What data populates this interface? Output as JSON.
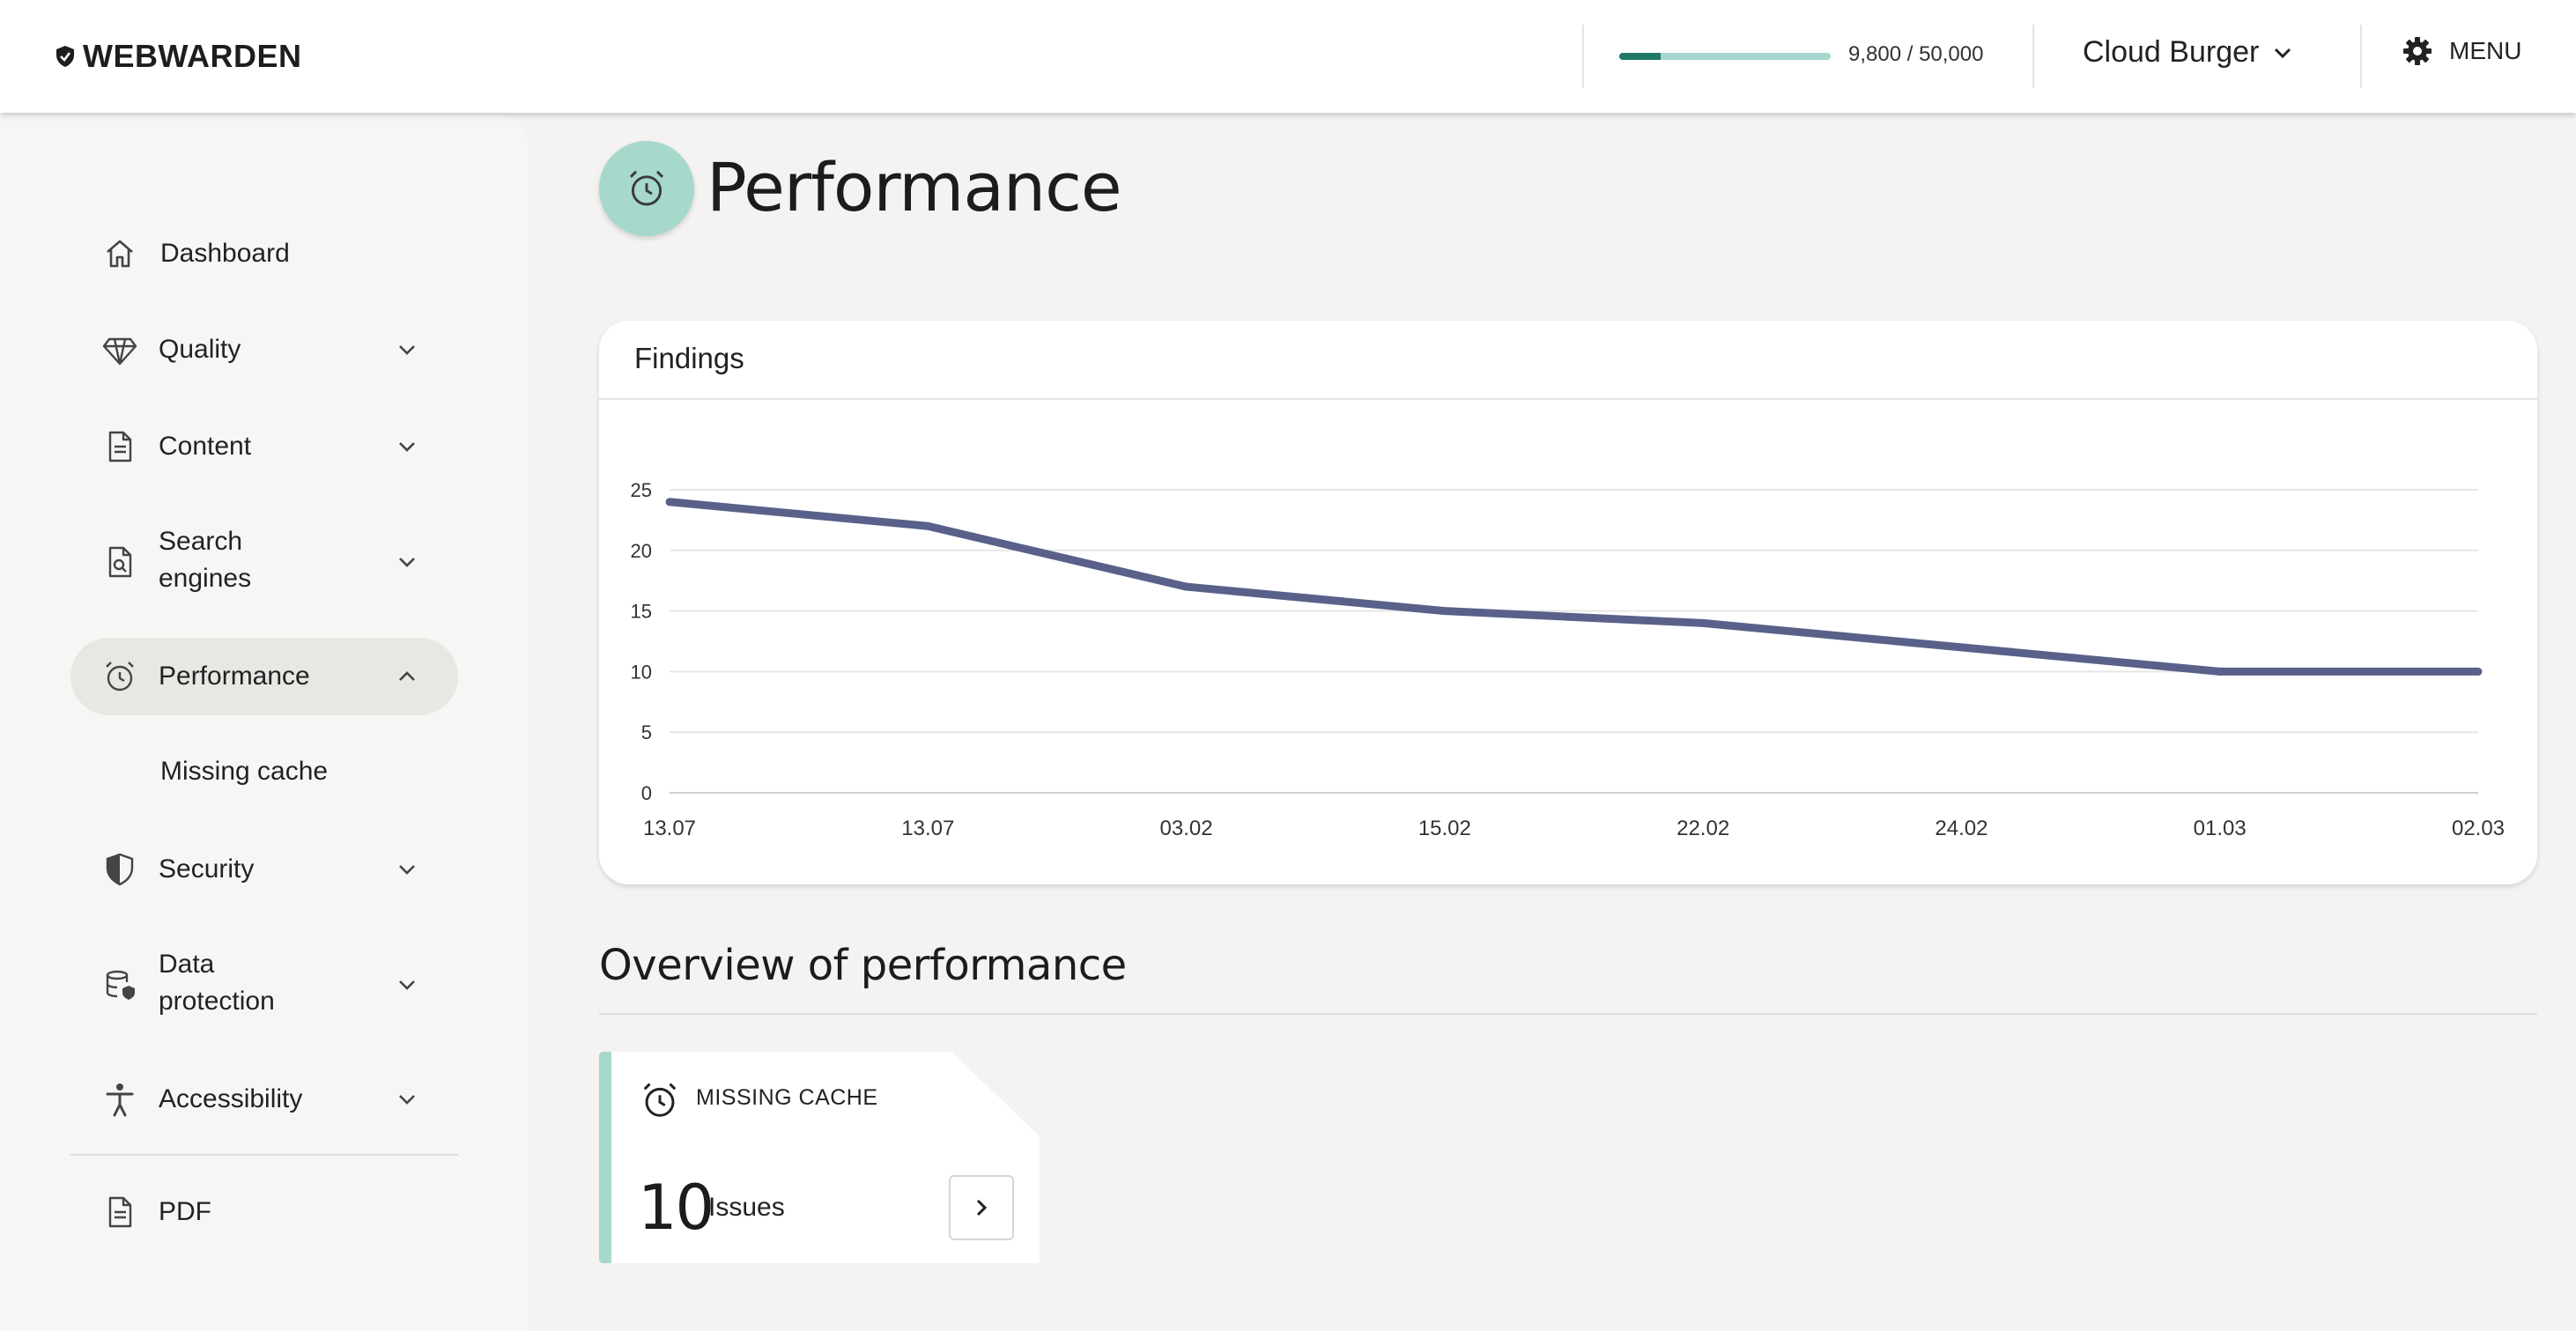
{
  "header": {
    "logo_text": "WEBWARDEN",
    "usage_text": "9,800 / 50,000",
    "usage_fraction": 0.196,
    "project_name": "Cloud Burger",
    "menu_label": "MENU"
  },
  "sidebar": {
    "items": [
      {
        "label": "Dashboard",
        "icon": "home-icon"
      },
      {
        "label": "Quality",
        "icon": "diamond-icon"
      },
      {
        "label": "Content",
        "icon": "document-icon"
      },
      {
        "label": "Search\nengines",
        "icon": "search-document-icon"
      },
      {
        "label": "Performance",
        "icon": "alarm-clock-icon"
      },
      {
        "label": "Security",
        "icon": "shield-icon"
      },
      {
        "label": "Data\nprotection",
        "icon": "database-shield-icon"
      },
      {
        "label": "Accessibility",
        "icon": "accessibility-icon"
      },
      {
        "label": "PDF",
        "icon": "pdf-document-icon"
      }
    ],
    "subitem": "Missing cache"
  },
  "page": {
    "title": "Performance",
    "icon": "alarm-clock-icon"
  },
  "findings_card": {
    "title": "Findings"
  },
  "chart_data": {
    "type": "line",
    "title": "Findings",
    "x": [
      "13.07",
      "13.07",
      "03.02",
      "15.02",
      "22.02",
      "24.02",
      "01.03",
      "02.03"
    ],
    "y": [
      24,
      22,
      17,
      15,
      14,
      12,
      10,
      10
    ],
    "ylim": [
      0,
      25
    ],
    "yticks": [
      0,
      5,
      10,
      15,
      20,
      25
    ],
    "grid": true,
    "line_color": "#59618a"
  },
  "overview": {
    "title": "Overview of performance",
    "card": {
      "heading": "MISSING CACHE",
      "count": "10",
      "unit": "Issues",
      "accent": "#a6d8cc"
    }
  }
}
